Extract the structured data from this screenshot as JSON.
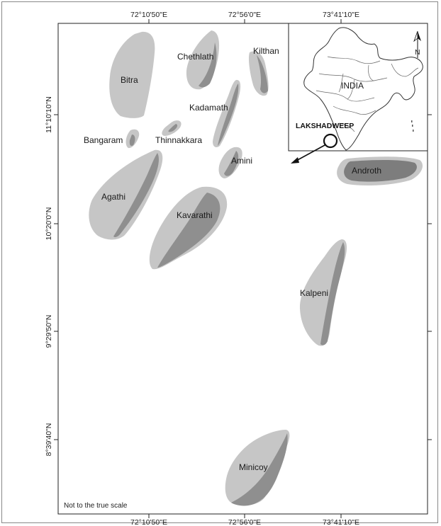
{
  "map": {
    "colors": {
      "island_light": "#c6c6c6",
      "island_dark": "#8f8f8f",
      "lagoon_dark": "#7d7d7d",
      "background": "#ffffff",
      "frame": "#222222"
    },
    "lon_ticks_top": [
      "72°10'50\"E",
      "72°56'0\"E",
      "73°41'10\"E"
    ],
    "lon_ticks_bottom": [
      "72°10'50\"E",
      "72°56'0\"E",
      "73°41'10\"E"
    ],
    "lat_ticks": [
      "11°10'10\"N",
      "10°20'0\"N",
      "9°29'50\"N",
      "8°39'40\"N"
    ],
    "islands": {
      "bitra": "Bitra",
      "chethlath": "Chethlath",
      "kilthan": "Kilthan",
      "kadamath": "Kadamath",
      "bangaram": "Bangaram",
      "thinnakkara": "Thinnakkara",
      "amini": "Amini",
      "androth": "Androth",
      "agathi": "Agathi",
      "kavarathi": "Kavarathi",
      "kalpeni": "Kalpeni",
      "minicoy": "Minicoy"
    },
    "scale_note": "Not to the true scale"
  },
  "inset": {
    "country_label": "INDIA",
    "region_label": "LAKSHADWEEP",
    "north_label": "N"
  }
}
